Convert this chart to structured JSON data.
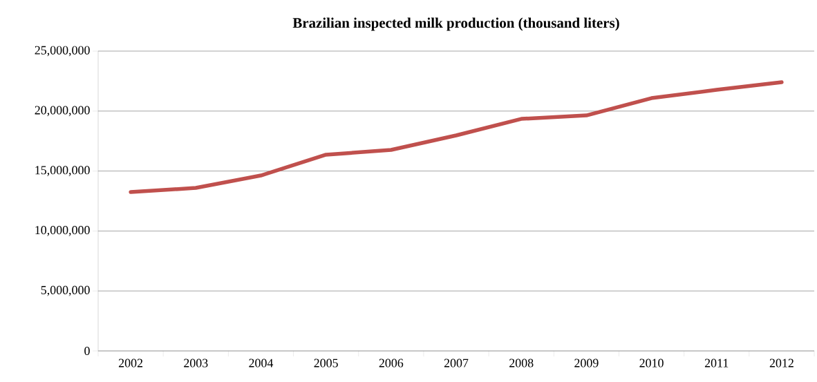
{
  "chart_data": {
    "type": "line",
    "title": "Brazilian inspected milk production (thousand liters)",
    "categories": [
      "2002",
      "2003",
      "2004",
      "2005",
      "2006",
      "2007",
      "2008",
      "2009",
      "2010",
      "2011",
      "2012"
    ],
    "values": [
      13250000,
      13590000,
      14630000,
      16360000,
      16760000,
      17970000,
      19350000,
      19640000,
      21080000,
      21770000,
      22410000
    ],
    "color": "#c0504d",
    "ylim": [
      0,
      25000000
    ],
    "yticks": [
      {
        "value": 0,
        "label": "0"
      },
      {
        "value": 5000000,
        "label": "5,000,000"
      },
      {
        "value": 10000000,
        "label": "10,000,000"
      },
      {
        "value": 15000000,
        "label": "15,000,000"
      },
      {
        "value": 20000000,
        "label": "20,000,000"
      },
      {
        "value": 25000000,
        "label": "25,000,000"
      }
    ],
    "grid": "y",
    "marker": "none",
    "line_style": "solid"
  }
}
